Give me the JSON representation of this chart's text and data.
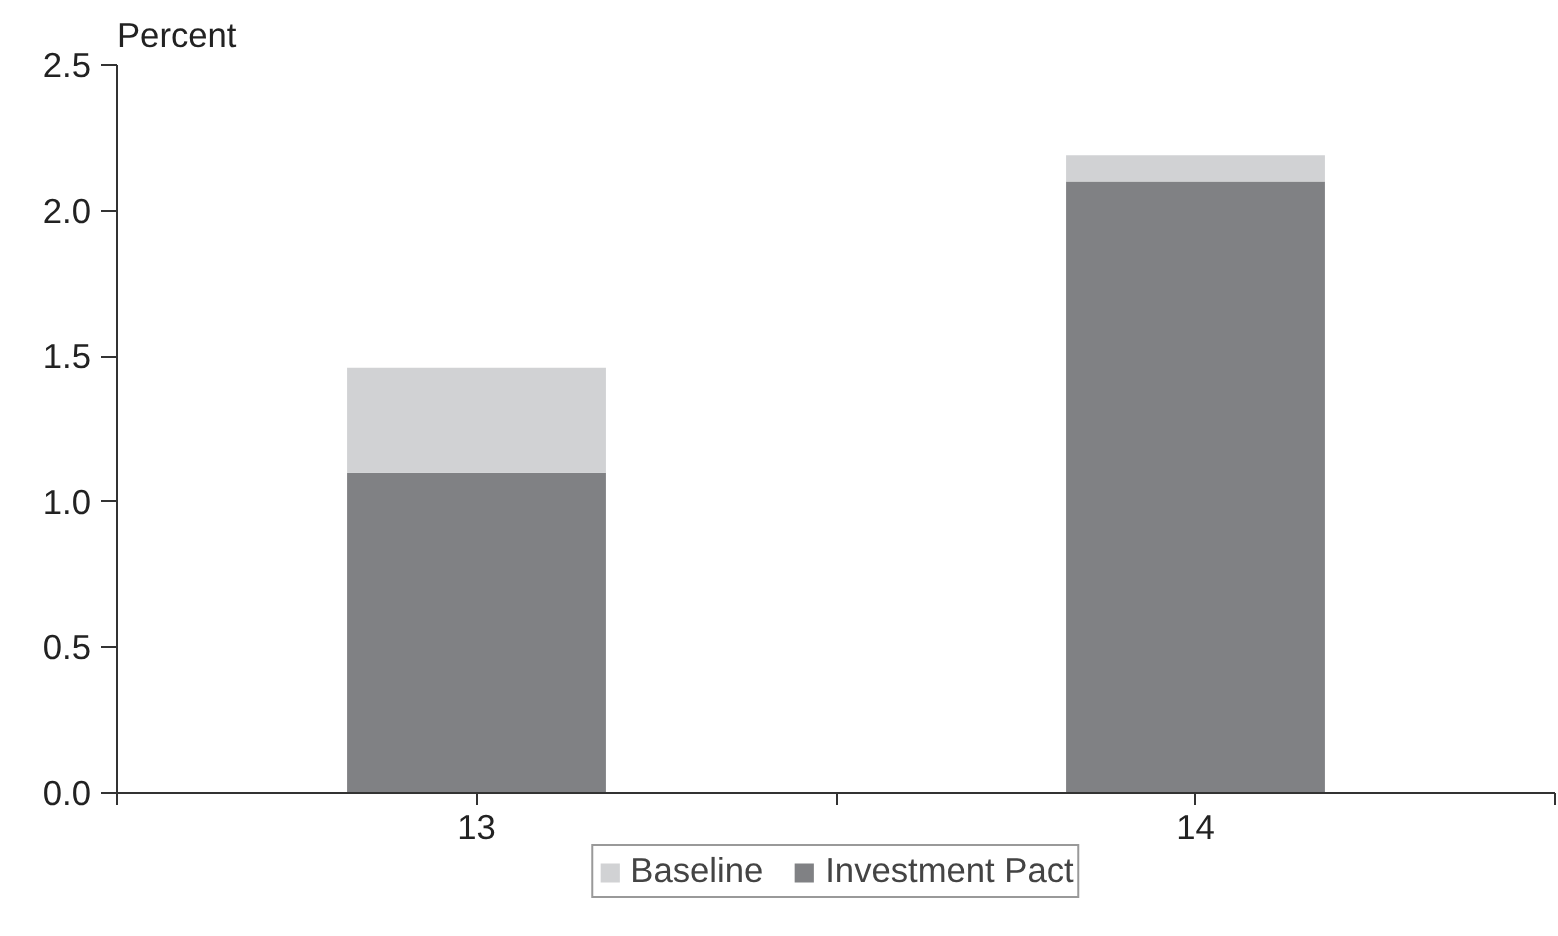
{
  "chart_data": {
    "type": "bar",
    "stacked": true,
    "ylabel": "Percent",
    "categories": [
      "13",
      "14"
    ],
    "series": [
      {
        "name": "Investment Pact",
        "color": "#808184",
        "values": [
          1.1,
          2.1
        ]
      },
      {
        "name": "Baseline",
        "color": "#d1d2d4",
        "values": [
          0.36,
          0.09
        ]
      }
    ],
    "ylim": [
      0,
      2.5
    ],
    "yticks": [
      {
        "value": 0,
        "label": "0.0"
      },
      0.5,
      {
        "value": 1,
        "label": "1.0"
      },
      1.5,
      {
        "value": 2,
        "label": "2.0"
      },
      2.5
    ],
    "grid": false,
    "legend": "bottom"
  }
}
